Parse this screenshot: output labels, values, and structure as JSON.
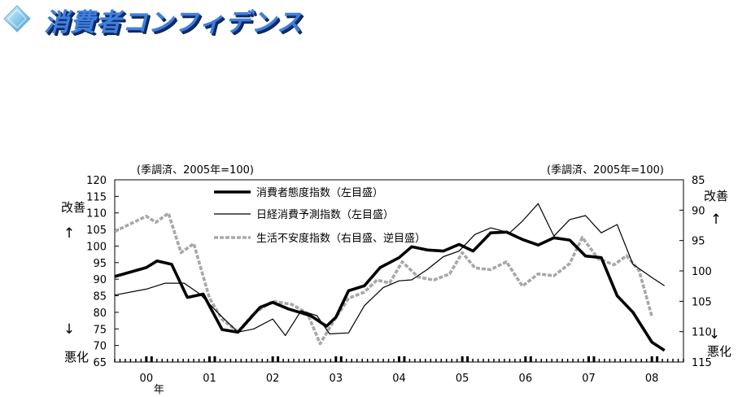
{
  "header": {
    "title": "消費者コンフィデンス",
    "icon": "diamond-icon"
  },
  "chart_data": {
    "type": "line",
    "unit_left": "(季調済、2005年=100)",
    "unit_right": "(季調済、2005年=100)",
    "yticks_left": [
      "120",
      "115",
      "110",
      "105",
      "100",
      "95",
      "90",
      "85",
      "80",
      "75",
      "70",
      "65"
    ],
    "yticks_right": [
      "85",
      "90",
      "95",
      "100",
      "105",
      "110",
      "115"
    ],
    "ylim_left": [
      65,
      120
    ],
    "ylim_right": [
      85,
      115
    ],
    "right_axis_inverted": true,
    "left_side_labels": {
      "improve": "改善",
      "up_arrow": "↑",
      "down_arrow": "↓",
      "worsen": "悪化"
    },
    "right_side_labels": {
      "improve": "改善",
      "up_arrow": "↑",
      "down_arrow": "↓",
      "worsen": "悪化"
    },
    "xlim": [
      1999.5,
      2008.5
    ],
    "x_ticks": [
      {
        "x": 2000.0,
        "label": "00"
      },
      {
        "x": 2001.0,
        "label": "01"
      },
      {
        "x": 2002.0,
        "label": "02"
      },
      {
        "x": 2003.0,
        "label": "03"
      },
      {
        "x": 2004.0,
        "label": "04"
      },
      {
        "x": 2005.0,
        "label": "05"
      },
      {
        "x": 2006.0,
        "label": "06"
      },
      {
        "x": 2007.0,
        "label": "07"
      },
      {
        "x": 2008.0,
        "label": "08"
      }
    ],
    "year_suffix": "年",
    "series": [
      {
        "name": "消費者態度指数（左目盛）",
        "axis": "left",
        "style": "thick-black",
        "points": [
          [
            1999.5,
            90.8
          ],
          [
            2000.0,
            93.5
          ],
          [
            2000.17,
            95.5
          ],
          [
            2000.4,
            94.5
          ],
          [
            2000.65,
            84.5
          ],
          [
            2000.9,
            85.5
          ],
          [
            2001.2,
            74.8
          ],
          [
            2001.45,
            74.0
          ],
          [
            2001.8,
            81.5
          ],
          [
            2002.0,
            83.0
          ],
          [
            2002.25,
            81.0
          ],
          [
            2002.6,
            79.0
          ],
          [
            2002.85,
            75.8
          ],
          [
            2003.0,
            78.5
          ],
          [
            2003.2,
            86.5
          ],
          [
            2003.45,
            88.0
          ],
          [
            2003.7,
            93.5
          ],
          [
            2004.0,
            96.5
          ],
          [
            2004.2,
            99.8
          ],
          [
            2004.45,
            98.8
          ],
          [
            2004.7,
            98.5
          ],
          [
            2004.95,
            100.5
          ],
          [
            2005.17,
            98.5
          ],
          [
            2005.45,
            104.0
          ],
          [
            2005.7,
            104.2
          ],
          [
            2005.95,
            102.0
          ],
          [
            2006.2,
            100.3
          ],
          [
            2006.45,
            102.5
          ],
          [
            2006.7,
            101.8
          ],
          [
            2006.95,
            97.0
          ],
          [
            2007.2,
            96.5
          ],
          [
            2007.45,
            85.0
          ],
          [
            2007.7,
            80.0
          ],
          [
            2008.0,
            71.0
          ],
          [
            2008.2,
            68.5
          ]
        ]
      },
      {
        "name": "日経消費予測指数（左目盛）",
        "axis": "left",
        "style": "thin-black",
        "points": [
          [
            1999.5,
            85.2
          ],
          [
            2000.0,
            87.0
          ],
          [
            2000.3,
            88.8
          ],
          [
            2000.6,
            88.8
          ],
          [
            2000.85,
            85.5
          ],
          [
            2001.15,
            79.5
          ],
          [
            2001.45,
            74.0
          ],
          [
            2001.7,
            75.0
          ],
          [
            2002.0,
            78.0
          ],
          [
            2002.2,
            73.0
          ],
          [
            2002.45,
            80.5
          ],
          [
            2002.7,
            79.0
          ],
          [
            2002.9,
            73.5
          ],
          [
            2003.2,
            73.8
          ],
          [
            2003.45,
            82.0
          ],
          [
            2003.75,
            87.5
          ],
          [
            2004.0,
            89.5
          ],
          [
            2004.2,
            89.8
          ],
          [
            2004.45,
            93.0
          ],
          [
            2004.7,
            96.8
          ],
          [
            2004.95,
            98.5
          ],
          [
            2005.2,
            103.5
          ],
          [
            2005.45,
            105.5
          ],
          [
            2005.75,
            104.0
          ],
          [
            2005.95,
            107.5
          ],
          [
            2006.2,
            112.8
          ],
          [
            2006.45,
            103.0
          ],
          [
            2006.7,
            108.0
          ],
          [
            2006.95,
            109.2
          ],
          [
            2007.2,
            104.0
          ],
          [
            2007.45,
            106.5
          ],
          [
            2007.7,
            94.5
          ],
          [
            2008.0,
            90.5
          ],
          [
            2008.2,
            88.0
          ]
        ]
      },
      {
        "name": "生活不安度指数（右目盛、逆目盛）",
        "axis": "right",
        "style": "dashed-gray",
        "points": [
          [
            1999.5,
            93.5
          ],
          [
            2000.0,
            91.0
          ],
          [
            2000.15,
            92.0
          ],
          [
            2000.35,
            90.5
          ],
          [
            2000.55,
            97.0
          ],
          [
            2000.75,
            95.5
          ],
          [
            2001.0,
            104.5
          ],
          [
            2001.2,
            108.0
          ],
          [
            2001.45,
            110.0
          ],
          [
            2001.7,
            107.0
          ],
          [
            2002.0,
            105.0
          ],
          [
            2002.3,
            105.5
          ],
          [
            2002.55,
            107.0
          ],
          [
            2002.75,
            112.0
          ],
          [
            2002.95,
            108.5
          ],
          [
            2003.2,
            104.5
          ],
          [
            2003.45,
            103.5
          ],
          [
            2003.65,
            101.5
          ],
          [
            2003.85,
            102.0
          ],
          [
            2004.05,
            98.5
          ],
          [
            2004.3,
            101.0
          ],
          [
            2004.55,
            101.5
          ],
          [
            2004.8,
            100.5
          ],
          [
            2005.0,
            97.0
          ],
          [
            2005.2,
            99.5
          ],
          [
            2005.45,
            99.8
          ],
          [
            2005.7,
            98.5
          ],
          [
            2005.95,
            102.5
          ],
          [
            2006.2,
            100.5
          ],
          [
            2006.45,
            100.8
          ],
          [
            2006.7,
            98.8
          ],
          [
            2006.9,
            94.5
          ],
          [
            2007.15,
            98.0
          ],
          [
            2007.4,
            99.0
          ],
          [
            2007.6,
            97.5
          ],
          [
            2007.8,
            100.0
          ],
          [
            2008.0,
            107.5
          ]
        ]
      }
    ]
  }
}
